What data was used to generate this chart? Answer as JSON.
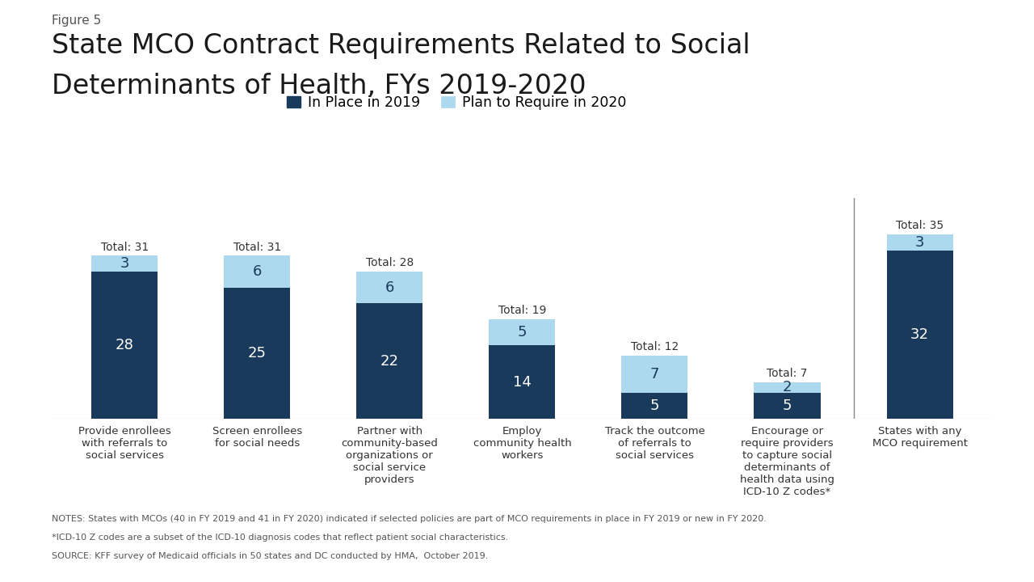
{
  "figure_label": "Figure 5",
  "title_line1": "State MCO Contract Requirements Related to Social",
  "title_line2": "Determinants of Health, FYs 2019-2020",
  "categories": [
    "Provide enrollees\nwith referrals to\nsocial services",
    "Screen enrollees\nfor social needs",
    "Partner with\ncommunity-based\norganizations or\nsocial service\nproviders",
    "Employ\ncommunity health\nworkers",
    "Track the outcome\nof referrals to\nsocial services",
    "Encourage or\nrequire providers\nto capture social\ndeterminants of\nhealth data using\nICD-10 Z codes*",
    "States with any\nMCO requirement"
  ],
  "values_2019": [
    28,
    25,
    22,
    14,
    5,
    5,
    32
  ],
  "values_2020": [
    3,
    6,
    6,
    5,
    7,
    2,
    3
  ],
  "totals": [
    31,
    31,
    28,
    19,
    12,
    7,
    35
  ],
  "color_2019": "#1a3a5c",
  "color_2020": "#acd9ed",
  "legend_labels": [
    "In Place in 2019",
    "Plan to Require in 2020"
  ],
  "notes_line1": "NOTES: States with MCOs (40 in FY 2019 and 41 in FY 2020) indicated if selected policies are part of MCO requirements in place in FY 2019 or new in FY 2020.",
  "notes_line2": "*ICD-10 Z codes are a subset of the ICD-10 diagnosis codes that reflect patient social characteristics.",
  "notes_line3": "SOURCE: KFF survey of Medicaid officials in 50 states and DC conducted by HMA,  October 2019.",
  "bar_width": 0.5,
  "ylim": [
    0,
    42
  ]
}
